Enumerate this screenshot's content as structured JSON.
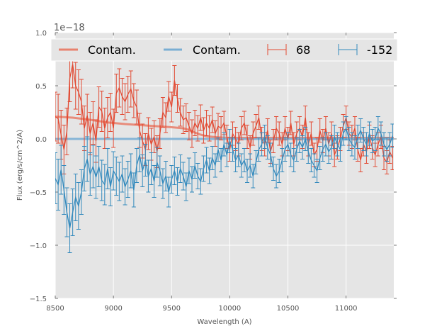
{
  "chart_data": {
    "type": "line",
    "title": "",
    "xlabel": "Wavelength (A)",
    "ylabel": "Flux (erg/s/cm^2/A)",
    "y_offset_text": "1e−18",
    "xlim": [
      8500,
      11410
    ],
    "ylim": [
      -1.5,
      1.0
    ],
    "x_ticks": [
      8500,
      9000,
      9500,
      10000,
      10500,
      11000
    ],
    "x_tick_labels": [
      "8500",
      "9000",
      "9500",
      "10000",
      "10500",
      "11000"
    ],
    "y_ticks": [
      -1.5,
      -1.0,
      -0.5,
      0.0,
      0.5,
      1.0
    ],
    "y_tick_labels": [
      "−1.5",
      "−1.0",
      "−0.5",
      "0.0",
      "0.5",
      "1.0"
    ],
    "grid": true,
    "legend_position": "top",
    "colors": {
      "red": "#E24A33",
      "blue": "#348ABD",
      "red_contam": "#E8826F",
      "blue_contam": "#7AAED3",
      "axes_bg": "#E5E5E5",
      "grid": "#FFFFFF"
    },
    "x_start": 8500,
    "x_step": 25,
    "legend": [
      {
        "label": "Contam.",
        "kind": "line",
        "color_key": "red_contam"
      },
      {
        "label": "Contam.",
        "kind": "line",
        "color_key": "blue_contam"
      },
      {
        "label": "68",
        "kind": "errorbar",
        "color_key": "red"
      },
      {
        "label": "-152",
        "kind": "errorbar",
        "color_key": "blue"
      }
    ],
    "series": [
      {
        "name": "68",
        "kind": "errorbar",
        "color_key": "red",
        "values": [
          0.21,
          0.19,
          0.04,
          -0.1,
          0.07,
          0.57,
          0.7,
          0.5,
          0.44,
          0.35,
          0.1,
          0.22,
          0.05,
          0.15,
          -0.02,
          0.3,
          0.26,
          0.1,
          0.2,
          0.25,
          0.1,
          0.43,
          0.48,
          0.4,
          0.35,
          0.42,
          0.47,
          0.36,
          0.3,
          0.08,
          -0.02,
          -0.1,
          0.05,
          -0.05,
          0.02,
          -0.12,
          0.05,
          0.25,
          0.2,
          0.4,
          0.3,
          0.55,
          0.38,
          0.25,
          0.18,
          0.2,
          0.12,
          0.05,
          0.15,
          0.1,
          0.2,
          0.08,
          0.15,
          0.1,
          0.18,
          0.05,
          0.12,
          0.1,
          0.15,
          0.02,
          -0.1,
          0.05,
          0.0,
          -0.05,
          0.1,
          0.15,
          0.02,
          -0.08,
          0.05,
          0.12,
          0.2,
          0.0,
          -0.05,
          0.08,
          -0.12,
          -0.02,
          0.1,
          0.05,
          -0.05,
          0.1,
          0.0,
          0.15,
          -0.05,
          0.05,
          0.1,
          0.02,
          0.2,
          -0.05,
          0.05,
          -0.15,
          -0.1,
          0.08,
          -0.02,
          0.1,
          -0.05,
          0.05,
          -0.15,
          -0.08,
          0.0,
          0.12,
          0.2,
          0.05,
          0.02,
          0.1,
          -0.1,
          -0.2,
          -0.05,
          -0.12,
          0.02,
          -0.08,
          -0.15,
          -0.05,
          0.02,
          -0.18,
          -0.22,
          -0.12,
          -0.18
        ],
        "errors": [
          0.23,
          0.23,
          0.23,
          0.23,
          0.22,
          0.22,
          0.22,
          0.22,
          0.21,
          0.21,
          0.21,
          0.2,
          0.2,
          0.2,
          0.2,
          0.19,
          0.19,
          0.19,
          0.19,
          0.18,
          0.18,
          0.18,
          0.18,
          0.17,
          0.17,
          0.17,
          0.17,
          0.16,
          0.16,
          0.16,
          0.16,
          0.15,
          0.15,
          0.15,
          0.15,
          0.15,
          0.14,
          0.14,
          0.14,
          0.14,
          0.14,
          0.14,
          0.13,
          0.13,
          0.13,
          0.13,
          0.13,
          0.13,
          0.12,
          0.12,
          0.12,
          0.12,
          0.12,
          0.12,
          0.12,
          0.12,
          0.12,
          0.11,
          0.11,
          0.11,
          0.11,
          0.11,
          0.11,
          0.11,
          0.11,
          0.11,
          0.11,
          0.11,
          0.11,
          0.11,
          0.11,
          0.11,
          0.11,
          0.11,
          0.11,
          0.11,
          0.11,
          0.11,
          0.11,
          0.11,
          0.11,
          0.11,
          0.11,
          0.11,
          0.11,
          0.11,
          0.11,
          0.11,
          0.11,
          0.11,
          0.11,
          0.11,
          0.11,
          0.11,
          0.11,
          0.11,
          0.11,
          0.11,
          0.11,
          0.11,
          0.11,
          0.11,
          0.11,
          0.11,
          0.11,
          0.11,
          0.11,
          0.11,
          0.11,
          0.11,
          0.11,
          0.11,
          0.11,
          0.11,
          0.11,
          0.11,
          0.11
        ]
      },
      {
        "name": "-152",
        "kind": "errorbar",
        "color_key": "blue",
        "values": [
          -0.37,
          -0.43,
          -0.29,
          -0.48,
          -0.69,
          -0.84,
          -0.69,
          -0.55,
          -0.63,
          -0.5,
          -0.28,
          -0.19,
          -0.33,
          -0.26,
          -0.36,
          -0.26,
          -0.39,
          -0.43,
          -0.28,
          -0.45,
          -0.3,
          -0.35,
          -0.4,
          -0.33,
          -0.45,
          -0.38,
          -0.3,
          -0.48,
          -0.25,
          -0.15,
          -0.3,
          -0.2,
          -0.35,
          -0.28,
          -0.4,
          -0.22,
          -0.3,
          -0.42,
          -0.35,
          -0.5,
          -0.38,
          -0.3,
          -0.4,
          -0.28,
          -0.35,
          -0.45,
          -0.3,
          -0.38,
          -0.25,
          -0.35,
          -0.4,
          -0.28,
          -0.2,
          -0.3,
          -0.18,
          -0.25,
          -0.1,
          -0.2,
          -0.05,
          -0.15,
          -0.02,
          -0.1,
          -0.2,
          -0.15,
          -0.25,
          -0.2,
          -0.3,
          -0.25,
          -0.35,
          -0.22,
          -0.1,
          -0.05,
          0.02,
          -0.08,
          -0.15,
          -0.28,
          -0.35,
          -0.3,
          -0.2,
          -0.1,
          -0.05,
          -0.15,
          -0.2,
          -0.1,
          -0.02,
          -0.08,
          0.0,
          -0.12,
          -0.2,
          -0.25,
          -0.3,
          -0.18,
          -0.1,
          -0.05,
          -0.12,
          -0.08,
          0.02,
          -0.05,
          -0.1,
          0.05,
          0.1,
          0.0,
          -0.05,
          -0.08,
          0.02,
          0.08,
          0.0,
          -0.05,
          0.05,
          -0.02,
          0.0,
          0.1,
          0.05,
          -0.05,
          -0.1,
          -0.05,
          0.03
        ],
        "errors": [
          0.24,
          0.24,
          0.23,
          0.23,
          0.23,
          0.23,
          0.22,
          0.22,
          0.22,
          0.21,
          0.21,
          0.21,
          0.2,
          0.2,
          0.2,
          0.19,
          0.19,
          0.19,
          0.19,
          0.18,
          0.18,
          0.18,
          0.18,
          0.17,
          0.17,
          0.17,
          0.16,
          0.16,
          0.16,
          0.16,
          0.15,
          0.15,
          0.15,
          0.15,
          0.15,
          0.14,
          0.14,
          0.14,
          0.14,
          0.14,
          0.13,
          0.13,
          0.13,
          0.13,
          0.13,
          0.13,
          0.12,
          0.12,
          0.12,
          0.12,
          0.12,
          0.12,
          0.12,
          0.12,
          0.11,
          0.11,
          0.11,
          0.11,
          0.11,
          0.11,
          0.11,
          0.11,
          0.11,
          0.11,
          0.11,
          0.11,
          0.11,
          0.11,
          0.11,
          0.11,
          0.11,
          0.11,
          0.11,
          0.11,
          0.11,
          0.11,
          0.11,
          0.11,
          0.11,
          0.11,
          0.11,
          0.11,
          0.11,
          0.11,
          0.11,
          0.11,
          0.11,
          0.11,
          0.11,
          0.11,
          0.11,
          0.11,
          0.11,
          0.11,
          0.11,
          0.11,
          0.11,
          0.11,
          0.11,
          0.11,
          0.11,
          0.11,
          0.11,
          0.11,
          0.11,
          0.11,
          0.11,
          0.11,
          0.11,
          0.11,
          0.11,
          0.11,
          0.11,
          0.11,
          0.11,
          0.11,
          0.11
        ]
      },
      {
        "name": "Contam.",
        "kind": "line",
        "color_key": "red_contam",
        "x": [
          8500,
          8650,
          8800,
          8950,
          9100,
          9300,
          9500,
          9600,
          9650,
          9700,
          9750,
          9800,
          9900,
          10000,
          10500,
          11000,
          11410
        ],
        "values": [
          0.21,
          0.2,
          0.18,
          0.155,
          0.14,
          0.125,
          0.11,
          0.1,
          0.085,
          0.06,
          0.04,
          0.025,
          0.015,
          0.01,
          0.01,
          0.01,
          0.01
        ]
      },
      {
        "name": "Contam.",
        "kind": "line",
        "color_key": "blue_contam",
        "x": [
          8500,
          11410
        ],
        "values": [
          0.0,
          0.0
        ]
      }
    ]
  }
}
